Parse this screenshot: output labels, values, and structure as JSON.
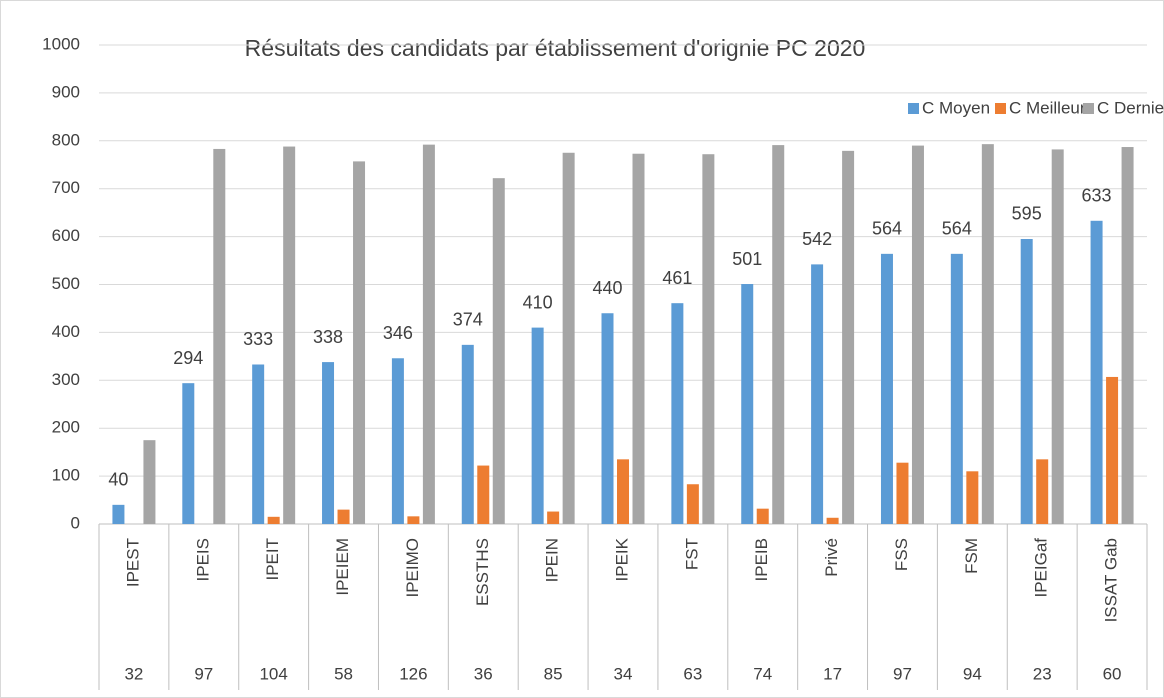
{
  "chart_data": {
    "type": "bar",
    "title": "Résultats des candidats par établissement d'orignie PC 2020",
    "categories": [
      "IPEST",
      "IPEIS",
      "IPEIT",
      "IPEIEM",
      "IPEIMO",
      "ESSTHS",
      "IPEIN",
      "IPEIK",
      "FST",
      "IPEIB",
      "Privé",
      "FSS",
      "FSM",
      "IPEIGaf",
      "ISSAT Gab"
    ],
    "counts": [
      32,
      97,
      104,
      58,
      126,
      36,
      85,
      34,
      63,
      74,
      17,
      97,
      94,
      23,
      60
    ],
    "series": [
      {
        "name": "C Moyen",
        "color": "#5b9bd5",
        "values": [
          40,
          294,
          333,
          338,
          346,
          374,
          410,
          440,
          461,
          501,
          542,
          564,
          564,
          595,
          633
        ],
        "show_labels": true
      },
      {
        "name": "C Meilleur",
        "color": "#ed7d31",
        "values": [
          0,
          0,
          15,
          30,
          16,
          122,
          26,
          135,
          83,
          32,
          13,
          128,
          110,
          135,
          307
        ],
        "show_labels": false
      },
      {
        "name": "C Dernier",
        "color": "#a5a5a5",
        "values": [
          175,
          783,
          788,
          757,
          792,
          722,
          775,
          773,
          772,
          791,
          779,
          790,
          793,
          782,
          787
        ],
        "show_labels": false
      }
    ],
    "ylim": [
      0,
      1000
    ],
    "yticks": [
      0,
      100,
      200,
      300,
      400,
      500,
      600,
      700,
      800,
      900,
      1000
    ],
    "grid": true,
    "legend": "top-right"
  }
}
